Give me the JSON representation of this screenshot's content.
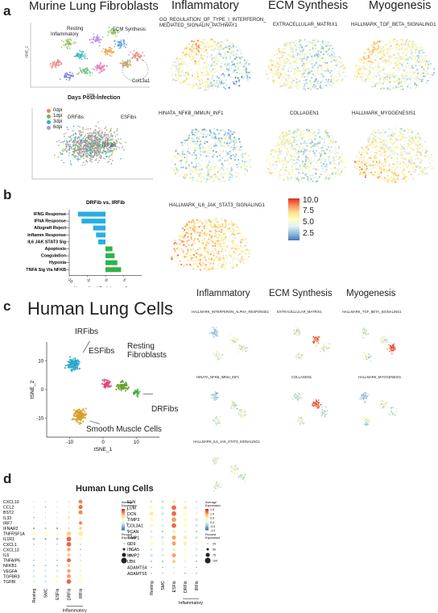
{
  "panel_a": {
    "letter": "a",
    "title": "Murine Lung Fibroblasts",
    "cluster_labels": [
      "Resting",
      "ECM Synthesis",
      "Inflammatory",
      "Col13a1"
    ],
    "axis_x": "tSNE_1",
    "axis_y": "tSNE_2",
    "legend_title": "Days Post-infection",
    "legend": [
      {
        "label": "0dpi",
        "color": "#e8836f"
      },
      {
        "label": "1dpi",
        "color": "#7fb33f"
      },
      {
        "label": "3dpi",
        "color": "#2bb5c0"
      },
      {
        "label": "6dpi",
        "color": "#b88de0"
      }
    ],
    "overlay_labels": [
      "DRFibs",
      "ESFibs",
      "IRFibs"
    ],
    "column_headers": [
      "Inflammatory",
      "ECM Synthesis",
      "Myogenesis"
    ],
    "maps": [
      {
        "title": "GO_REGULATION_OF_TYPE_I_INTERFERON_\nMEDIATED_SIGNALIN_PATHWAY1"
      },
      {
        "title": "EXTRACELLULAR_MATRIX1"
      },
      {
        "title": "HALLMARK_TGF_BETA_SIGNALING1"
      },
      {
        "title": "HINATA_NFKB_IMMUN_INF1"
      },
      {
        "title": "COLLAGEN1"
      },
      {
        "title": "HALLMARK_MYOGENESIS1"
      },
      {
        "title": "HALLMARK_IL6_JAK_STAT3_SIGNALING1"
      }
    ],
    "colorbar": {
      "ticks": [
        "10.0",
        "7.5",
        "5.0",
        "2.5"
      ]
    }
  },
  "panel_b": {
    "letter": "b",
    "chart_data": {
      "type": "bar",
      "title": "DRFib vs. IRFib",
      "xlabel": "Normalized Enrichment Score",
      "categories": [
        "IFNG Response",
        "IFNA Response",
        "Allograft Reject",
        "Inflamm Response",
        "IL6 JAK STAT3 Sig",
        "Apoptosis",
        "Coagulation",
        "Hypoxia",
        "TNFA Sig Via NFKB"
      ],
      "values": [
        -7.6,
        -6.6,
        -3.4,
        -2.6,
        -2.0,
        1.9,
        2.5,
        3.3,
        4.3
      ],
      "xlim": [
        -10,
        10
      ],
      "xticks": [
        "-10",
        "-5",
        "0",
        "5"
      ],
      "colors": {
        "negative": "#27aee3",
        "positive": "#2fb24a"
      }
    }
  },
  "panel_c": {
    "letter": "c",
    "title": "Human Lung Cells",
    "axis_x": "tSNE_1",
    "axis_y": "tSNE_2",
    "xticks": [
      "-10",
      "0",
      "10"
    ],
    "yticks": [
      "10",
      "0",
      "-10"
    ],
    "cluster_labels": [
      "IRFibs",
      "ESFibs",
      "Resting\nFibroblasts",
      "DRFibs",
      "Smooth Muscle Cells"
    ],
    "column_headers": [
      "Inflammatory",
      "ECM Synthesis",
      "Myogenesis"
    ],
    "maps": [
      {
        "title": "HALLMARK_INTERFERON_ALPHA_RESPONSE1"
      },
      {
        "title": "EXTRACELLULAR_MATRIX1"
      },
      {
        "title": "HALLMARK_TGF_BETA_SIGNALING1"
      },
      {
        "title": "HINATA_NFKB_IMMU_INF1"
      },
      {
        "title": "COLLAGEN1"
      },
      {
        "title": "HALLMARK_MYOGENESIS"
      },
      {
        "title": "HALLMARK_IL6_JAK_STAT3_SIGNALING1"
      }
    ]
  },
  "panel_d": {
    "letter": "d",
    "title": "Human Lung Cells",
    "groups": [
      "Resting",
      "SMC",
      "ESFib",
      "DRFib",
      "IRFib"
    ],
    "group_bracket": "Inflammatory",
    "left_genes": [
      "CXCL10",
      "CCL2",
      "BST2",
      "IL33",
      "IRF7",
      "IFNAR2",
      "TNFRSF1A",
      "IL1R1",
      "CXCL1",
      "CXCL13",
      "IL6",
      "TNFAIP6",
      "NFKB1",
      "VEGFA",
      "TGFBR3",
      "TGFBI"
    ],
    "right_genes": [
      "ELN",
      "LUM",
      "DCN",
      "TIMP3",
      "COL3A1",
      "VCAN",
      "TIMP1",
      "CD9",
      "ITGA5",
      "MMP2",
      "LOX",
      "ADAMTS4",
      "ADAMTS5"
    ],
    "legend_avg_title": "Average\nExpression",
    "legend_avg_ticks_left": [
      "2",
      "1",
      "0",
      "-1"
    ],
    "legend_avg_ticks_right": [
      "1.5",
      "1.0",
      "0.5",
      "0.0",
      "-0.5",
      "-1.0"
    ],
    "legend_pct_title": "Percent\nExpressed",
    "legend_pct_left": [
      "0",
      "25",
      "50",
      "75"
    ],
    "legend_pct_right": [
      "25",
      "50",
      "75",
      "100"
    ],
    "left_dots": [
      [
        [
          0.05,
          0.1
        ],
        [
          0.02,
          0.1
        ],
        [
          0.05,
          0.1
        ],
        [
          0.3,
          0.3
        ],
        [
          0.85,
          0.7
        ]
      ],
      [
        [
          0.05,
          0.1
        ],
        [
          0.1,
          0.2
        ],
        [
          0.05,
          0.1
        ],
        [
          0.4,
          0.3
        ],
        [
          0.9,
          0.7
        ]
      ],
      [
        [
          0.05,
          0.1
        ],
        [
          0.02,
          0.1
        ],
        [
          0.05,
          0.1
        ],
        [
          0.3,
          0.3
        ],
        [
          0.85,
          0.7
        ]
      ],
      [
        [
          0.05,
          0.2
        ],
        [
          0.02,
          0.1
        ],
        [
          0.05,
          0.1
        ],
        [
          0.6,
          0.5
        ],
        [
          0.4,
          0.4
        ]
      ],
      [
        [
          0.05,
          0.1
        ],
        [
          0.02,
          0.1
        ],
        [
          0.05,
          0.1
        ],
        [
          0.3,
          0.3
        ],
        [
          0.85,
          0.6
        ]
      ],
      [
        [
          0.1,
          0.3
        ],
        [
          0.2,
          0.3
        ],
        [
          0.1,
          0.3
        ],
        [
          0.3,
          0.4
        ],
        [
          0.7,
          0.5
        ]
      ],
      [
        [
          0.5,
          0.7
        ],
        [
          0.5,
          0.7
        ],
        [
          0.5,
          0.7
        ],
        [
          0.7,
          0.8
        ],
        [
          0.6,
          0.8
        ]
      ],
      [
        [
          0.2,
          0.4
        ],
        [
          0.1,
          0.3
        ],
        [
          0.2,
          0.4
        ],
        [
          0.9,
          0.8
        ],
        [
          0.5,
          0.6
        ]
      ],
      [
        [
          0.1,
          0.2
        ],
        [
          0.05,
          0.1
        ],
        [
          0.1,
          0.2
        ],
        [
          0.9,
          0.8
        ],
        [
          0.3,
          0.4
        ]
      ],
      [
        [
          0.05,
          0.1
        ],
        [
          0.05,
          0.1
        ],
        [
          0.05,
          0.1
        ],
        [
          0.8,
          0.6
        ],
        [
          0.1,
          0.2
        ]
      ],
      [
        [
          0.05,
          0.1
        ],
        [
          0.05,
          0.1
        ],
        [
          0.05,
          0.1
        ],
        [
          0.7,
          0.6
        ],
        [
          0.2,
          0.2
        ]
      ],
      [
        [
          0.1,
          0.2
        ],
        [
          0.05,
          0.1
        ],
        [
          0.1,
          0.2
        ],
        [
          0.9,
          0.7
        ],
        [
          0.3,
          0.3
        ]
      ],
      [
        [
          0.2,
          0.3
        ],
        [
          0.2,
          0.3
        ],
        [
          0.2,
          0.3
        ],
        [
          0.7,
          0.5
        ],
        [
          0.5,
          0.4
        ]
      ],
      [
        [
          0.3,
          0.4
        ],
        [
          0.3,
          0.4
        ],
        [
          0.3,
          0.4
        ],
        [
          0.8,
          0.6
        ],
        [
          0.4,
          0.4
        ]
      ],
      [
        [
          0.3,
          0.4
        ],
        [
          0.3,
          0.4
        ],
        [
          0.4,
          0.5
        ],
        [
          0.8,
          0.7
        ],
        [
          0.5,
          0.5
        ]
      ],
      [
        [
          0.4,
          0.5
        ],
        [
          0.3,
          0.4
        ],
        [
          0.5,
          0.6
        ],
        [
          0.9,
          0.8
        ],
        [
          0.5,
          0.6
        ]
      ]
    ],
    "right_dots": [
      [
        [
          0.3,
          0.4
        ],
        [
          0.2,
          0.3
        ],
        [
          0.6,
          0.6
        ],
        [
          0.4,
          0.5
        ],
        [
          0.3,
          0.4
        ]
      ],
      [
        [
          0.5,
          0.7
        ],
        [
          0.3,
          0.5
        ],
        [
          0.9,
          0.8
        ],
        [
          0.6,
          0.6
        ],
        [
          0.4,
          0.5
        ]
      ],
      [
        [
          0.6,
          0.7
        ],
        [
          0.3,
          0.5
        ],
        [
          0.9,
          0.8
        ],
        [
          0.5,
          0.6
        ],
        [
          0.4,
          0.5
        ]
      ],
      [
        [
          0.5,
          0.7
        ],
        [
          0.4,
          0.5
        ],
        [
          0.8,
          0.8
        ],
        [
          0.5,
          0.6
        ],
        [
          0.3,
          0.5
        ]
      ],
      [
        [
          0.4,
          0.6
        ],
        [
          0.3,
          0.4
        ],
        [
          0.9,
          0.8
        ],
        [
          0.5,
          0.6
        ],
        [
          0.3,
          0.5
        ]
      ],
      [
        [
          0.3,
          0.4
        ],
        [
          0.2,
          0.3
        ],
        [
          0.6,
          0.5
        ],
        [
          0.4,
          0.4
        ],
        [
          0.2,
          0.3
        ]
      ],
      [
        [
          0.4,
          0.6
        ],
        [
          0.3,
          0.5
        ],
        [
          0.8,
          0.7
        ],
        [
          0.6,
          0.6
        ],
        [
          0.3,
          0.5
        ]
      ],
      [
        [
          0.5,
          0.7
        ],
        [
          0.4,
          0.6
        ],
        [
          0.8,
          0.7
        ],
        [
          0.6,
          0.6
        ],
        [
          0.4,
          0.5
        ]
      ],
      [
        [
          0.3,
          0.4
        ],
        [
          0.3,
          0.4
        ],
        [
          0.6,
          0.5
        ],
        [
          0.5,
          0.5
        ],
        [
          0.3,
          0.4
        ]
      ],
      [
        [
          0.3,
          0.5
        ],
        [
          0.3,
          0.4
        ],
        [
          0.8,
          0.7
        ],
        [
          0.5,
          0.5
        ],
        [
          0.3,
          0.4
        ]
      ],
      [
        [
          0.2,
          0.3
        ],
        [
          0.2,
          0.3
        ],
        [
          0.7,
          0.6
        ],
        [
          0.4,
          0.4
        ],
        [
          0.2,
          0.3
        ]
      ],
      [
        [
          0.1,
          0.2
        ],
        [
          0.1,
          0.2
        ],
        [
          0.3,
          0.3
        ],
        [
          0.3,
          0.3
        ],
        [
          0.1,
          0.2
        ]
      ],
      [
        [
          0.1,
          0.2
        ],
        [
          0.1,
          0.2
        ],
        [
          0.3,
          0.3
        ],
        [
          0.2,
          0.3
        ],
        [
          0.1,
          0.2
        ]
      ]
    ]
  }
}
